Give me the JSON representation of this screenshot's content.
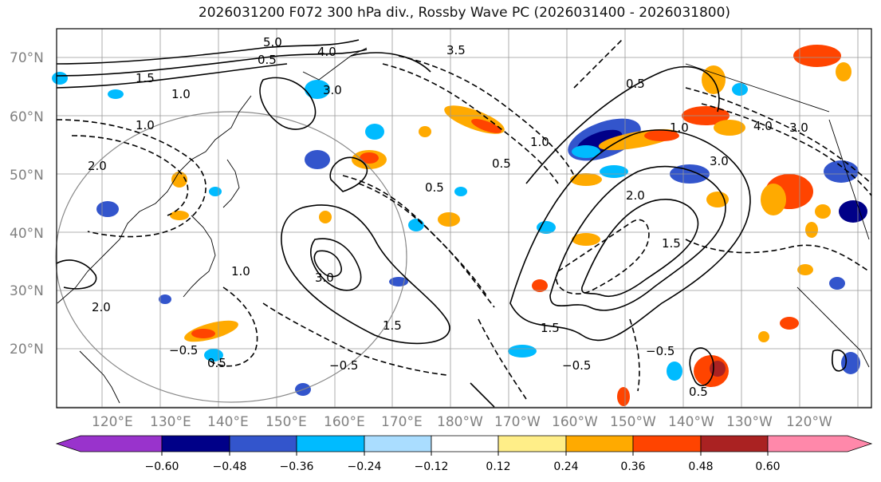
{
  "title": "2026031200 F072 300 hPa div., Rossby Wave PC (2026031400 - 2026031800)",
  "lat_labels": [
    "70°N",
    "60°N",
    "50°N",
    "40°N",
    "30°N",
    "20°N"
  ],
  "lon_labels": [
    "120°E",
    "130°E",
    "140°E",
    "150°E",
    "160°E",
    "170°E",
    "180°W",
    "170°W",
    "160°W",
    "150°W",
    "140°W",
    "130°W",
    "120°W"
  ],
  "colorbar": {
    "colors": [
      "#9933cc",
      "#000088",
      "#3355cc",
      "#00bbff",
      "#aaddff",
      "#ffffff",
      "#ffee88",
      "#ffaa00",
      "#ff4400",
      "#aa2222",
      "#ff88aa"
    ],
    "ticks": [
      "−0.60",
      "−0.48",
      "−0.36",
      "−0.24",
      "−0.12",
      "0.12",
      "0.24",
      "0.36",
      "0.48",
      "0.60"
    ]
  },
  "contour_labels": [
    "1.5",
    "1.0",
    "0.5",
    "3.0",
    "4.0",
    "2.0",
    "3.5",
    "5.0",
    "0.5",
    "0.5",
    "1.0",
    "−0.5",
    "−0.5",
    "−0.5",
    "0.5",
    "1.5",
    "1.5",
    "3.0",
    "2.0",
    "1.0",
    "0.5",
    "4.0",
    "3.0",
    "1.0",
    "2.0",
    "1.0",
    "0.5",
    "3.0",
    "1.5",
    "−0.5"
  ],
  "colors": {
    "pos_strong": "#ff4400",
    "pos": "#ffaa00",
    "neg": "#00bbff",
    "neg_strong": "#3355cc",
    "neg_max": "#000088"
  }
}
